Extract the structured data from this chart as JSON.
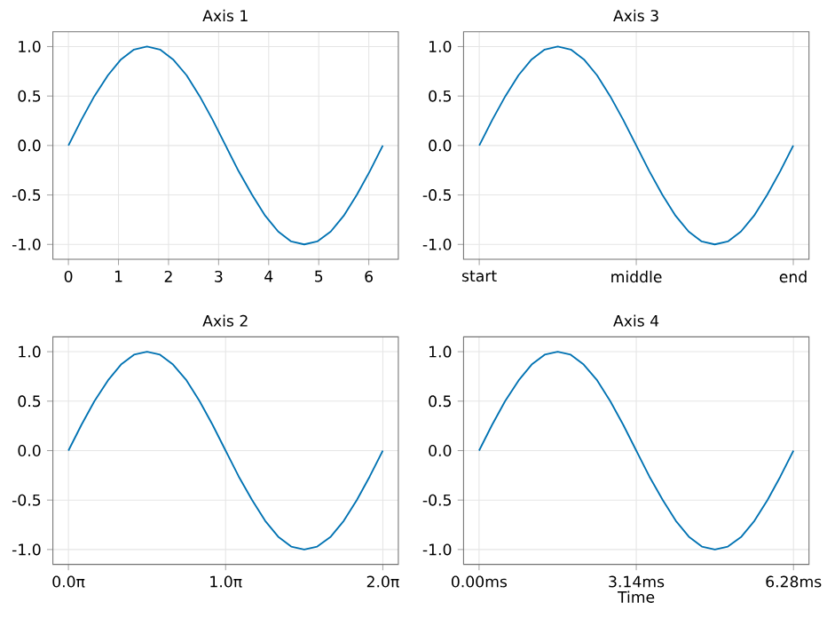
{
  "chart_data": [
    {
      "type": "line",
      "title": "Axis 1",
      "x": [
        0,
        0.26,
        0.52,
        0.79,
        1.05,
        1.31,
        1.57,
        1.83,
        2.09,
        2.36,
        2.62,
        2.88,
        3.14,
        3.4,
        3.67,
        3.93,
        4.19,
        4.45,
        4.71,
        4.97,
        5.24,
        5.5,
        5.76,
        6.02,
        6.28
      ],
      "series": [
        {
          "color": "#0072b2",
          "values": [
            0,
            0.26,
            0.5,
            0.71,
            0.87,
            0.97,
            1,
            0.97,
            0.87,
            0.71,
            0.5,
            0.26,
            0,
            -0.26,
            -0.5,
            -0.71,
            -0.87,
            -0.97,
            -1,
            -0.97,
            -0.87,
            -0.71,
            -0.5,
            -0.26,
            0
          ]
        }
      ],
      "xlim": [
        -0.31,
        6.59
      ],
      "ylim": [
        -1.15,
        1.15
      ],
      "xticks": [
        0,
        1,
        2,
        3,
        4,
        5,
        6
      ],
      "yticks": [
        {
          "value": -1,
          "label": "-1.0"
        },
        {
          "value": -0.5,
          "label": "-0.5"
        },
        {
          "value": 0,
          "label": "0.0"
        },
        {
          "value": 0.5,
          "label": "0.5"
        },
        {
          "value": 1,
          "label": "1.0"
        }
      ],
      "grid": true
    },
    {
      "type": "line",
      "title": "Axis 3",
      "categories": [
        "start",
        null,
        null,
        null,
        null,
        null,
        null,
        null,
        null,
        null,
        null,
        null,
        "middle",
        null,
        null,
        null,
        null,
        null,
        null,
        null,
        null,
        null,
        null,
        null,
        "end"
      ],
      "series": [
        {
          "color": "#0072b2",
          "values": [
            0,
            0.26,
            0.5,
            0.71,
            0.87,
            0.97,
            1,
            0.97,
            0.87,
            0.71,
            0.5,
            0.26,
            0,
            -0.26,
            -0.5,
            -0.71,
            -0.87,
            -0.97,
            -1,
            -0.97,
            -0.87,
            -0.71,
            -0.5,
            -0.26,
            0
          ]
        }
      ],
      "ylim": [
        -1.15,
        1.15
      ],
      "yticks": [
        {
          "value": -1,
          "label": "-1.0"
        },
        {
          "value": -0.5,
          "label": "-0.5"
        },
        {
          "value": 0,
          "label": "0.0"
        },
        {
          "value": 0.5,
          "label": "0.5"
        },
        {
          "value": 1,
          "label": "1.0"
        }
      ],
      "grid": true
    },
    {
      "type": "line",
      "title": "Axis 2",
      "x": [
        0,
        0.26,
        0.52,
        0.79,
        1.05,
        1.31,
        1.57,
        1.83,
        2.09,
        2.36,
        2.62,
        2.88,
        3.14,
        3.4,
        3.67,
        3.93,
        4.19,
        4.45,
        4.71,
        4.97,
        5.24,
        5.5,
        5.76,
        6.02,
        6.28
      ],
      "series": [
        {
          "color": "#0072b2",
          "values": [
            0,
            0.26,
            0.5,
            0.71,
            0.87,
            0.97,
            1,
            0.97,
            0.87,
            0.71,
            0.5,
            0.26,
            0,
            -0.26,
            -0.5,
            -0.71,
            -0.87,
            -0.97,
            -1,
            -0.97,
            -0.87,
            -0.71,
            -0.5,
            -0.26,
            0
          ]
        }
      ],
      "xlim": [
        -0.31,
        6.59
      ],
      "ylim": [
        -1.15,
        1.15
      ],
      "xticks": [
        {
          "value": 0,
          "label": "0.0π"
        },
        {
          "value": 3.14,
          "label": "1.0π"
        },
        {
          "value": 6.28,
          "label": "2.0π"
        }
      ],
      "yticks": [
        {
          "value": -1,
          "label": "-1.0"
        },
        {
          "value": -0.5,
          "label": "-0.5"
        },
        {
          "value": 0,
          "label": "0.0"
        },
        {
          "value": 0.5,
          "label": "0.5"
        },
        {
          "value": 1,
          "label": "1.0"
        }
      ],
      "grid": true
    },
    {
      "type": "line",
      "title": "Axis 4",
      "xlabel": "Time",
      "x": [
        0,
        0.26,
        0.52,
        0.79,
        1.05,
        1.31,
        1.57,
        1.83,
        2.09,
        2.36,
        2.62,
        2.88,
        3.14,
        3.4,
        3.67,
        3.93,
        4.19,
        4.45,
        4.71,
        4.97,
        5.24,
        5.5,
        5.76,
        6.02,
        6.28
      ],
      "series": [
        {
          "color": "#0072b2",
          "values": [
            0,
            0.26,
            0.5,
            0.71,
            0.87,
            0.97,
            1,
            0.97,
            0.87,
            0.71,
            0.5,
            0.26,
            0,
            -0.26,
            -0.5,
            -0.71,
            -0.87,
            -0.97,
            -1,
            -0.97,
            -0.87,
            -0.71,
            -0.5,
            -0.26,
            0
          ]
        }
      ],
      "xlim": [
        -0.31,
        6.59
      ],
      "ylim": [
        -1.15,
        1.15
      ],
      "xticks": [
        {
          "value": 0,
          "label": "0.00ms"
        },
        {
          "value": 3.14,
          "label": "3.14ms"
        },
        {
          "value": 6.28,
          "label": "6.28ms"
        }
      ],
      "yticks": [
        {
          "value": -1,
          "label": "-1.0"
        },
        {
          "value": -0.5,
          "label": "-0.5"
        },
        {
          "value": 0,
          "label": "0.0"
        },
        {
          "value": 0.5,
          "label": "0.5"
        },
        {
          "value": 1,
          "label": "1.0"
        }
      ],
      "grid": true
    }
  ]
}
